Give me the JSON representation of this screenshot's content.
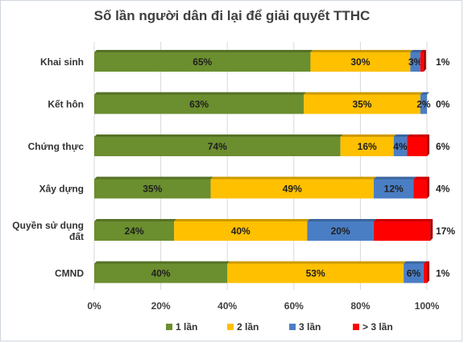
{
  "chart_data": {
    "type": "bar",
    "orientation": "horizontal",
    "stacked": true,
    "title": "Số lần người dân đi lại để giải quyết TTHC",
    "categories": [
      [
        "Khai sinh"
      ],
      [
        "Kết hôn"
      ],
      [
        "Chứng thực"
      ],
      [
        "Xây dựng"
      ],
      [
        "Quyền sử dụng",
        "đất"
      ],
      [
        "CMND"
      ]
    ],
    "series": [
      {
        "name": "1 lần",
        "color": "#6b8e2f",
        "values": [
          65,
          63,
          74,
          35,
          24,
          40
        ]
      },
      {
        "name": "2 lần",
        "color": "#ffc000",
        "values": [
          30,
          35,
          16,
          49,
          40,
          53
        ]
      },
      {
        "name": "3 lần",
        "color": "#4a7ec4",
        "values": [
          3,
          2,
          4,
          12,
          20,
          6
        ]
      },
      {
        "name": "> 3 lần",
        "color": "#ff0000",
        "values": [
          1,
          0,
          6,
          4,
          17,
          1
        ]
      }
    ],
    "xlim": [
      0,
      100
    ],
    "x_ticks": [
      "0%",
      "20%",
      "40%",
      "60%",
      "80%",
      "100%"
    ],
    "grid": true,
    "legend_position": "bottom"
  }
}
